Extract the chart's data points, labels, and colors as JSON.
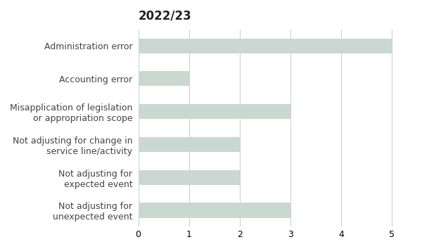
{
  "title": "2022/23",
  "categories": [
    "Administration error",
    "Accounting error",
    "Misapplication of legislation\nor appropriation scope",
    "Not adjusting for change in\nservice line/activity",
    "Not adjusting for\nexpected event",
    "Not adjusting for\nunexpected event"
  ],
  "values": [
    5,
    1,
    3,
    2,
    2,
    3
  ],
  "bar_color": "#cad8d2",
  "xlim": [
    0,
    5.4
  ],
  "xticks": [
    0,
    1,
    2,
    3,
    4,
    5
  ],
  "grid_color": "#d0d0d0",
  "background_color": "#ffffff",
  "title_fontsize": 12,
  "label_fontsize": 9,
  "tick_fontsize": 9,
  "bar_height": 0.45
}
